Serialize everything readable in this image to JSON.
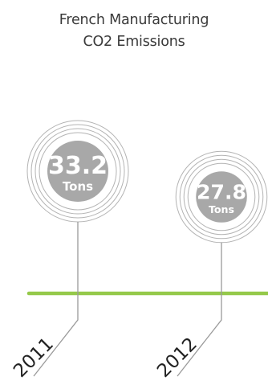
{
  "chart_data": {
    "type": "bubble",
    "title_lines": [
      "French Manufacturing",
      "CO2 Emissions"
    ],
    "unit": "Tons",
    "categories": [
      "2011",
      "2012"
    ],
    "values": [
      33.2,
      27.8
    ],
    "value_labels": [
      "33.2",
      "27.8"
    ],
    "colors": {
      "bubble": "#a8a8a8",
      "rings": "#b3b3b3",
      "timeline": "#95c94a",
      "title": "#3a3a3a"
    }
  }
}
